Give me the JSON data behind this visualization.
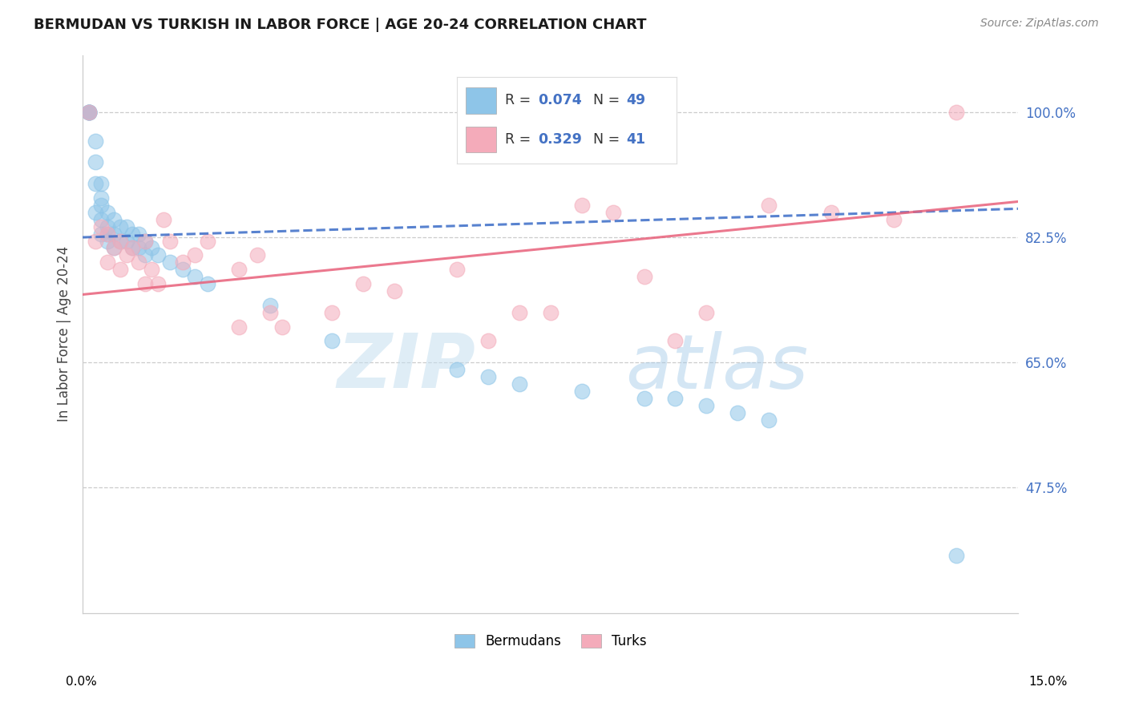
{
  "title": "BERMUDAN VS TURKISH IN LABOR FORCE | AGE 20-24 CORRELATION CHART",
  "source": "Source: ZipAtlas.com",
  "ylabel": "In Labor Force | Age 20-24",
  "yticks": [
    0.475,
    0.65,
    0.825,
    1.0
  ],
  "ytick_labels": [
    "47.5%",
    "65.0%",
    "82.5%",
    "100.0%"
  ],
  "xmin": 0.0,
  "xmax": 0.15,
  "ymin": 0.3,
  "ymax": 1.08,
  "R_blue": "0.074",
  "N_blue": "49",
  "R_pink": "0.329",
  "N_pink": "41",
  "watermark_zip": "ZIP",
  "watermark_atlas": "atlas",
  "blue_color": "#8EC5E8",
  "pink_color": "#F4ABBA",
  "blue_line_color": "#3B6CC7",
  "pink_line_color": "#E8607A",
  "grid_color": "#CCCCCC",
  "blue_x": [
    0.001,
    0.001,
    0.001,
    0.001,
    0.001,
    0.002,
    0.002,
    0.002,
    0.002,
    0.003,
    0.003,
    0.003,
    0.003,
    0.003,
    0.004,
    0.004,
    0.004,
    0.004,
    0.005,
    0.005,
    0.005,
    0.006,
    0.006,
    0.007,
    0.007,
    0.008,
    0.008,
    0.009,
    0.009,
    0.01,
    0.01,
    0.011,
    0.012,
    0.014,
    0.016,
    0.018,
    0.02,
    0.03,
    0.04,
    0.06,
    0.065,
    0.07,
    0.08,
    0.09,
    0.095,
    0.1,
    0.105,
    0.11,
    0.14
  ],
  "blue_y": [
    1.0,
    1.0,
    1.0,
    1.0,
    1.0,
    0.96,
    0.93,
    0.9,
    0.86,
    0.9,
    0.88,
    0.87,
    0.85,
    0.83,
    0.86,
    0.84,
    0.83,
    0.82,
    0.85,
    0.83,
    0.81,
    0.84,
    0.82,
    0.84,
    0.82,
    0.83,
    0.81,
    0.83,
    0.81,
    0.82,
    0.8,
    0.81,
    0.8,
    0.79,
    0.78,
    0.77,
    0.76,
    0.73,
    0.68,
    0.64,
    0.63,
    0.62,
    0.61,
    0.6,
    0.6,
    0.59,
    0.58,
    0.57,
    0.38
  ],
  "pink_x": [
    0.001,
    0.002,
    0.003,
    0.004,
    0.004,
    0.005,
    0.006,
    0.006,
    0.007,
    0.008,
    0.009,
    0.01,
    0.01,
    0.011,
    0.012,
    0.013,
    0.014,
    0.016,
    0.018,
    0.02,
    0.025,
    0.025,
    0.028,
    0.03,
    0.032,
    0.04,
    0.045,
    0.05,
    0.06,
    0.065,
    0.07,
    0.075,
    0.08,
    0.085,
    0.09,
    0.095,
    0.1,
    0.11,
    0.12,
    0.13,
    0.14
  ],
  "pink_y": [
    1.0,
    0.82,
    0.84,
    0.83,
    0.79,
    0.81,
    0.82,
    0.78,
    0.8,
    0.81,
    0.79,
    0.82,
    0.76,
    0.78,
    0.76,
    0.85,
    0.82,
    0.79,
    0.8,
    0.82,
    0.78,
    0.7,
    0.8,
    0.72,
    0.7,
    0.72,
    0.76,
    0.75,
    0.78,
    0.68,
    0.72,
    0.72,
    0.87,
    0.86,
    0.77,
    0.68,
    0.72,
    0.87,
    0.86,
    0.85,
    1.0
  ],
  "blue_line_x": [
    0.0,
    0.15
  ],
  "blue_line_y": [
    0.825,
    0.865
  ],
  "pink_line_x": [
    0.0,
    0.15
  ],
  "pink_line_y": [
    0.745,
    0.875
  ]
}
